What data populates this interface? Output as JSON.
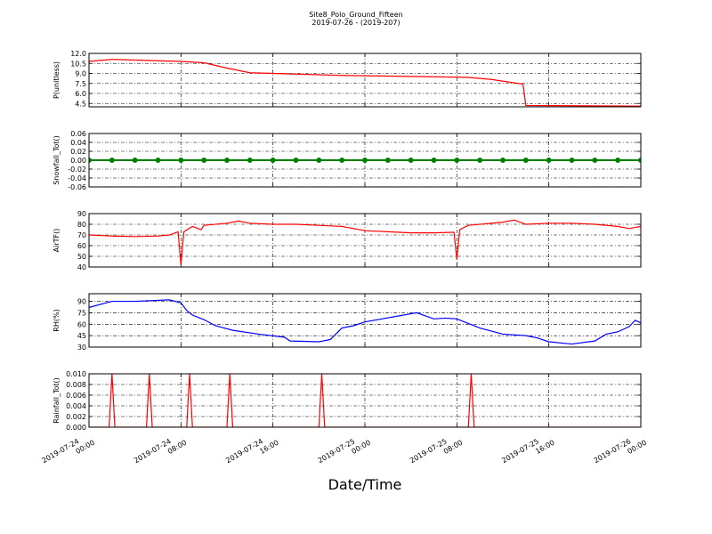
{
  "figure": {
    "title": "Site8_Polo_Ground_Fifteen",
    "subtitle": "2019-07-26 - (2019-207)",
    "xlabel": "Date/Time",
    "xlim": [
      "2019-07-24 00:00",
      "2019-07-26 00:00"
    ],
    "xticks": [
      "2019-07-24 00:00",
      "2019-07-24 08:00",
      "2019-07-24 16:00",
      "2019-07-25 00:00",
      "2019-07-25 08:00",
      "2019-07-25 16:00",
      "2019-07-26 00:00"
    ],
    "grid": true
  },
  "chart_data": [
    {
      "type": "line",
      "ylabel": "P(unitless)",
      "color": "#ff0000",
      "ylim": [
        4,
        12
      ],
      "yticks": [
        4.5,
        {
          "value": 6,
          "label": "6.0"
        },
        7.5,
        {
          "value": 9,
          "label": "9.0"
        },
        10.5,
        {
          "value": 12,
          "label": "12.0"
        }
      ],
      "x": [
        "2019-07-24 00:00",
        "2019-07-24 02:00",
        "2019-07-24 04:00",
        "2019-07-24 06:00",
        "2019-07-24 08:00",
        "2019-07-24 10:00",
        "2019-07-24 12:00",
        "2019-07-24 14:00",
        "2019-07-24 18:00",
        "2019-07-24 22:00",
        "2019-07-25 02:00",
        "2019-07-25 06:00",
        "2019-07-25 09:00",
        "2019-07-25 11:00",
        "2019-07-25 13:45",
        "2019-07-25 14:00",
        "2019-07-26 00:00"
      ],
      "values": [
        10.8,
        11.1,
        11.0,
        10.9,
        10.8,
        10.6,
        9.8,
        9.1,
        8.9,
        8.7,
        8.6,
        8.5,
        8.4,
        8.1,
        7.4,
        4.2,
        4.1
      ]
    },
    {
      "type": "line",
      "marker": true,
      "ylabel": "Snowfall_Tot()",
      "color": "#008000",
      "ylim": [
        -0.06,
        0.06
      ],
      "yticks": [
        -0.06,
        -0.04,
        -0.02,
        {
          "value": 0,
          "label": "0.00"
        },
        0.02,
        0.04,
        0.06
      ],
      "x": [
        "2019-07-24 00:00",
        "2019-07-24 02:00",
        "2019-07-24 04:00",
        "2019-07-24 06:00",
        "2019-07-24 08:00",
        "2019-07-24 10:00",
        "2019-07-24 12:00",
        "2019-07-24 14:00",
        "2019-07-24 16:00",
        "2019-07-24 18:00",
        "2019-07-24 20:00",
        "2019-07-24 22:00",
        "2019-07-25 00:00",
        "2019-07-25 02:00",
        "2019-07-25 04:00",
        "2019-07-25 06:00",
        "2019-07-25 08:00",
        "2019-07-25 10:00",
        "2019-07-25 12:00",
        "2019-07-25 14:00",
        "2019-07-25 16:00",
        "2019-07-25 18:00",
        "2019-07-25 20:00",
        "2019-07-25 22:00",
        "2019-07-26 00:00"
      ],
      "values": [
        0,
        0,
        0,
        0,
        0,
        0,
        0,
        0,
        0,
        0,
        0,
        0,
        0,
        0,
        0,
        0,
        0,
        0,
        0,
        0,
        0,
        0,
        0,
        0,
        0
      ]
    },
    {
      "type": "line",
      "ylabel": "AirTF()",
      "color": "#ff0000",
      "ylim": [
        40,
        90
      ],
      "yticks": [
        40,
        50,
        60,
        70,
        80,
        90
      ],
      "x": [
        "2019-07-24 00:00",
        "2019-07-24 02:00",
        "2019-07-24 04:00",
        "2019-07-24 06:00",
        "2019-07-24 07:00",
        "2019-07-24 07:45",
        "2019-07-24 08:00",
        "2019-07-24 08:15",
        "2019-07-24 09:00",
        "2019-07-24 09:45",
        "2019-07-24 10:00",
        "2019-07-24 12:00",
        "2019-07-24 13:00",
        "2019-07-24 14:00",
        "2019-07-24 16:00",
        "2019-07-24 18:00",
        "2019-07-24 20:00",
        "2019-07-24 22:00",
        "2019-07-25 00:00",
        "2019-07-25 02:00",
        "2019-07-25 04:00",
        "2019-07-25 06:00",
        "2019-07-25 07:45",
        "2019-07-25 08:00",
        "2019-07-25 08:15",
        "2019-07-25 09:00",
        "2019-07-25 12:00",
        "2019-07-25 13:00",
        "2019-07-25 14:00",
        "2019-07-25 16:00",
        "2019-07-25 18:00",
        "2019-07-25 20:00",
        "2019-07-25 22:00",
        "2019-07-25 23:00",
        "2019-07-26 00:00"
      ],
      "values": [
        70,
        69,
        68.5,
        69,
        70,
        73,
        42,
        73,
        78,
        75,
        79,
        81,
        83,
        81,
        80,
        80,
        79,
        78,
        74,
        73,
        72,
        72,
        72.5,
        47,
        75,
        79,
        82,
        84,
        80,
        81,
        81,
        80,
        78,
        76,
        78
      ]
    },
    {
      "type": "line",
      "ylabel": "RH(%)",
      "color": "#0000ff",
      "ylim": [
        30,
        100
      ],
      "yticks": [
        30,
        45,
        60,
        75,
        90
      ],
      "x": [
        "2019-07-24 00:00",
        "2019-07-24 02:00",
        "2019-07-24 04:00",
        "2019-07-24 07:00",
        "2019-07-24 08:00",
        "2019-07-24 08:30",
        "2019-07-24 09:00",
        "2019-07-24 10:00",
        "2019-07-24 11:00",
        "2019-07-24 12:30",
        "2019-07-24 14:45",
        "2019-07-24 17:00",
        "2019-07-24 17:30",
        "2019-07-24 20:00",
        "2019-07-24 21:00",
        "2019-07-24 22:00",
        "2019-07-24 23:00",
        "2019-07-25 00:00",
        "2019-07-25 04:30",
        "2019-07-25 06:00",
        "2019-07-25 07:00",
        "2019-07-25 08:00",
        "2019-07-25 10:00",
        "2019-07-25 12:00",
        "2019-07-25 14:00",
        "2019-07-25 15:00",
        "2019-07-25 16:00",
        "2019-07-25 18:00",
        "2019-07-25 20:00",
        "2019-07-25 21:00",
        "2019-07-25 22:00",
        "2019-07-25 23:00",
        "2019-07-25 23:30",
        "2019-07-26 00:00"
      ],
      "values": [
        82,
        90,
        90,
        92,
        88,
        78,
        72,
        66,
        58,
        52,
        47,
        43,
        38,
        37,
        40,
        55,
        58,
        63,
        75,
        67,
        68,
        67,
        55,
        47,
        45,
        42,
        37,
        34,
        38,
        47,
        50,
        57,
        65,
        62
      ]
    },
    {
      "type": "line",
      "ylabel": "Rainfall_Tot()",
      "color": "#ff0000",
      "ylim": [
        0,
        0.01
      ],
      "yticks": [
        {
          "value": 0,
          "label": "0.000"
        },
        {
          "value": 0.002,
          "label": "0.002"
        },
        {
          "value": 0.004,
          "label": "0.004"
        },
        {
          "value": 0.006,
          "label": "0.006"
        },
        {
          "value": 0.008,
          "label": "0.008"
        },
        {
          "value": 0.01,
          "label": "0.010"
        }
      ],
      "x": [
        "2019-07-24 00:00",
        "2019-07-24 01:45",
        "2019-07-24 02:00",
        "2019-07-24 02:15",
        "2019-07-24 05:00",
        "2019-07-24 05:15",
        "2019-07-24 05:30",
        "2019-07-24 08:30",
        "2019-07-24 08:45",
        "2019-07-24 09:00",
        "2019-07-24 12:00",
        "2019-07-24 12:15",
        "2019-07-24 12:30",
        "2019-07-24 20:00",
        "2019-07-24 20:15",
        "2019-07-24 20:30",
        "2019-07-25 09:00",
        "2019-07-25 09:15",
        "2019-07-25 09:30",
        "2019-07-26 00:00"
      ],
      "values": [
        0,
        0,
        0.01,
        0,
        0,
        0.01,
        0,
        0,
        0.01,
        0,
        0,
        0.01,
        0,
        0,
        0.01,
        0,
        0,
        0.01,
        0,
        0
      ]
    }
  ]
}
